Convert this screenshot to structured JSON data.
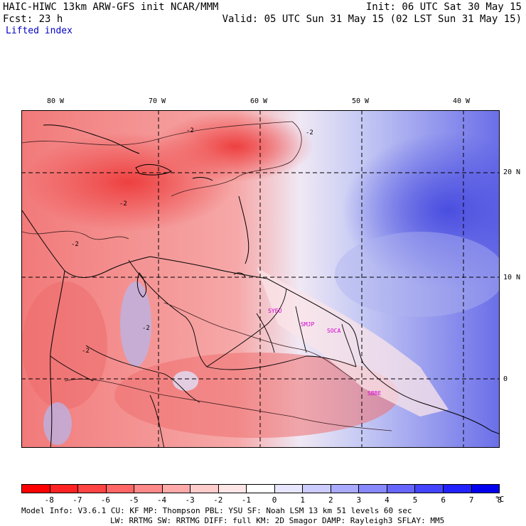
{
  "header": {
    "model_line": "HAIC-HIWC 13km ARW-GFS init   NCAR/MMM",
    "init_line": "Init: 06 UTC Sat 30 May 15",
    "fcst_line": "Fcst:   23 h",
    "valid_line": "Valid: 05 UTC Sun 31 May 15 (02 LST Sun 31 May 15)",
    "field_name": "Lifted index"
  },
  "axes": {
    "lon_labels": [
      "80 W",
      "70 W",
      "60 W",
      "50 W",
      "40 W"
    ],
    "lat_labels": [
      "20 N",
      "10 N",
      "0"
    ]
  },
  "contour_label": "-2",
  "stations": [
    "SYEU",
    "SMJP",
    "SOCA",
    "SBBE"
  ],
  "colorbar": {
    "labels": [
      "-8",
      "-7",
      "-6",
      "-5",
      "-4",
      "-3",
      "-2",
      "-1",
      "0",
      "1",
      "2",
      "3",
      "4",
      "5",
      "6",
      "7",
      "8"
    ],
    "unit": "°C",
    "colors": [
      "#ff0000",
      "#ff2222",
      "#ff4444",
      "#ff6666",
      "#ff8888",
      "#ffaaaa",
      "#ffcccc",
      "#ffe6e6",
      "#ffffff",
      "#e6e6ff",
      "#ccccff",
      "#aaaaff",
      "#8888ff",
      "#6666ff",
      "#4444ff",
      "#2222ff",
      "#0000ee"
    ]
  },
  "model_info": {
    "line1": "Model Info: V3.6.1    CU: KF     MP: Thompson    PBL: YSU      SF: Noah LSM    13 km   51 levels   60 sec",
    "line2": "LW: RRTMG   SW: RRTMG   DIFF: full   KM: 2D Smagor DAMP: Rayleigh3  SFLAY: MM5"
  }
}
